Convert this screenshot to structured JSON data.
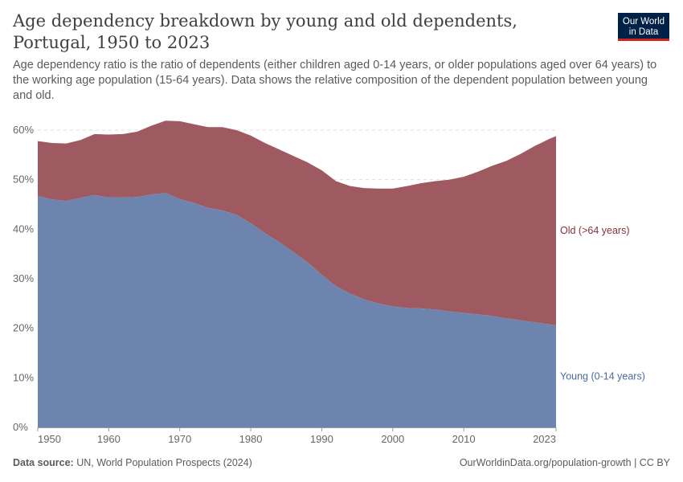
{
  "header": {
    "title": "Age dependency breakdown by young and old dependents, Portugal, 1950 to 2023",
    "subtitle": "Age dependency ratio is the ratio of dependents (either children aged 0-14 years, or older populations aged over 64 years) to the working age population (15-64 years). Data shows the relative composition of the dependent population between young and old.",
    "logo_line1": "Our World",
    "logo_line2": "in Data"
  },
  "footer": {
    "source_label": "Data source:",
    "source_text": "UN, World Population Prospects (2024)",
    "credit": "OurWorldinData.org/population-growth | CC BY"
  },
  "colors": {
    "young": "#6d85ae",
    "old": "#9e5a60",
    "young_label": "#4c6a9c",
    "old_label": "#883039",
    "logo_bg": "#002147",
    "logo_accent": "#ce261e"
  },
  "chart_data": {
    "type": "area",
    "stacked": true,
    "title": "Age dependency breakdown by young and old dependents, Portugal, 1950 to 2023",
    "xlabel": "",
    "ylabel": "",
    "xlim": [
      1950,
      2023
    ],
    "ylim": [
      0,
      60
    ],
    "x_ticks": [
      1950,
      1960,
      1970,
      1980,
      1990,
      2000,
      2010,
      2023
    ],
    "y_ticks": [
      0,
      10,
      20,
      30,
      40,
      50,
      60
    ],
    "y_tick_labels": [
      "0%",
      "10%",
      "20%",
      "30%",
      "40%",
      "50%",
      "60%"
    ],
    "grid": "horizontal dashed",
    "legend": "labels at right end of series",
    "x": [
      1950,
      1952,
      1954,
      1956,
      1958,
      1960,
      1962,
      1964,
      1966,
      1968,
      1970,
      1972,
      1974,
      1976,
      1978,
      1980,
      1982,
      1984,
      1986,
      1988,
      1990,
      1992,
      1994,
      1996,
      1998,
      2000,
      2002,
      2004,
      2006,
      2008,
      2010,
      2012,
      2014,
      2016,
      2018,
      2020,
      2022,
      2023
    ],
    "series": [
      {
        "name": "Young (0-14 years)",
        "values": [
          46.7,
          46.0,
          45.7,
          46.3,
          46.9,
          46.4,
          46.4,
          46.5,
          47.0,
          47.3,
          46.1,
          45.3,
          44.3,
          43.8,
          42.9,
          41.2,
          39.2,
          37.4,
          35.4,
          33.3,
          30.8,
          28.5,
          27.0,
          25.8,
          25.0,
          24.4,
          24.1,
          24.0,
          23.8,
          23.4,
          23.1,
          22.8,
          22.5,
          22.0,
          21.6,
          21.2,
          20.8,
          20.6
        ]
      },
      {
        "name": "Old (>64 years)",
        "values": [
          11.1,
          11.4,
          11.6,
          11.7,
          12.3,
          12.7,
          12.8,
          13.2,
          13.9,
          14.6,
          15.7,
          15.9,
          16.3,
          16.8,
          17.1,
          17.7,
          18.2,
          18.7,
          19.4,
          20.2,
          21.1,
          21.2,
          21.7,
          22.5,
          23.2,
          23.8,
          24.6,
          25.3,
          25.9,
          26.6,
          27.5,
          28.8,
          30.3,
          31.8,
          33.6,
          35.6,
          37.4,
          38.2
        ]
      }
    ]
  }
}
